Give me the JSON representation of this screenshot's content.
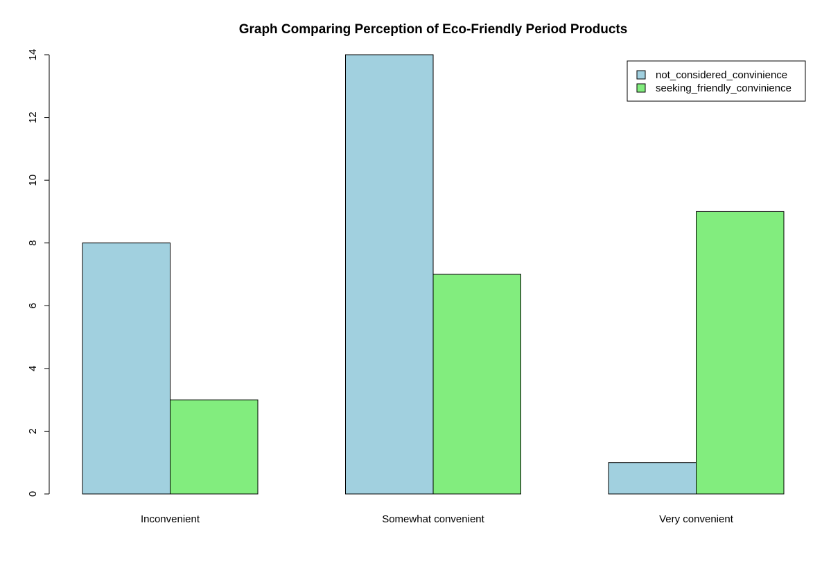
{
  "chart_data": {
    "type": "bar",
    "title": "Graph Comparing Perception of Eco-Friendly Period Products",
    "xlabel": "",
    "ylabel": "",
    "categories": [
      "Inconvenient",
      "Somewhat convenient",
      "Very convenient"
    ],
    "series": [
      {
        "name": "not_considered_convinience",
        "color": "#a1d0df",
        "values": [
          8,
          14,
          1
        ]
      },
      {
        "name": "seeking_friendly_convinience",
        "color": "#82ed7e",
        "values": [
          3,
          7,
          9
        ]
      }
    ],
    "ylim": [
      0,
      14
    ],
    "y_ticks": [
      0,
      2,
      4,
      6,
      8,
      10,
      12,
      14
    ],
    "grid": false,
    "legend_position": "top-right"
  }
}
